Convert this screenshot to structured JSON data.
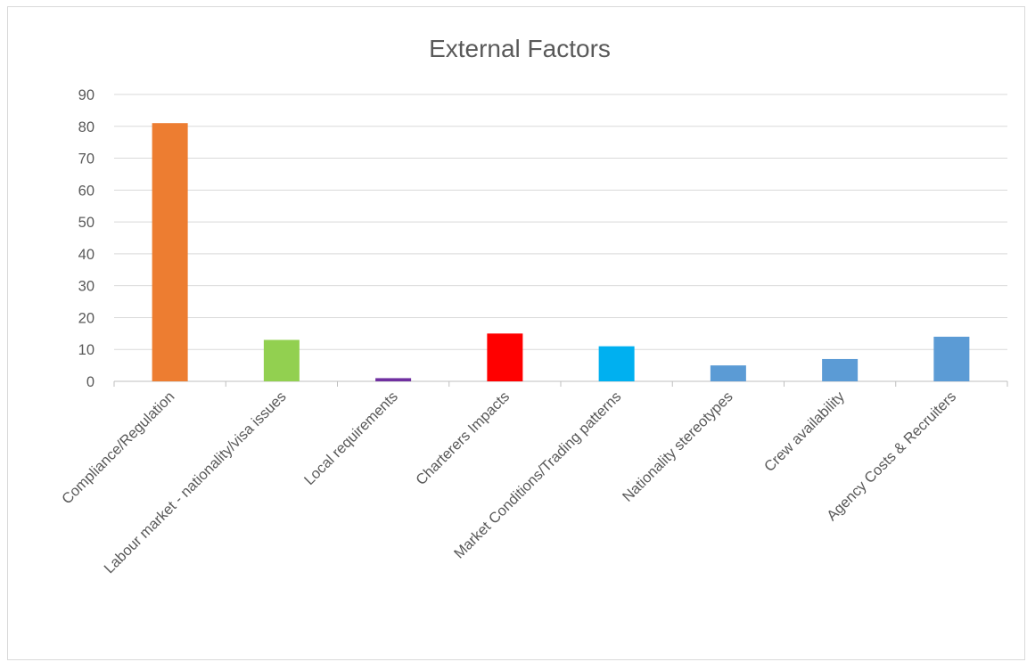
{
  "chart_data": {
    "type": "bar",
    "title": "External Factors",
    "xlabel": "",
    "ylabel": "",
    "ylim": [
      0,
      90
    ],
    "yticks": [
      0,
      10,
      20,
      30,
      40,
      50,
      60,
      70,
      80,
      90
    ],
    "grid": true,
    "legend": "none",
    "categories": [
      "Compliance/Regulation",
      "Labour market - nationality/visa issues",
      "Local requirements",
      "Charterers Impacts",
      "Market Conditions/Trading patterns",
      "Nationality stereotypes",
      "Crew availability",
      "Agency Costs & Recruiters"
    ],
    "values": [
      81,
      13,
      1,
      15,
      11,
      5,
      7,
      14
    ],
    "colors": [
      "#ED7D31",
      "#92D050",
      "#7030A0",
      "#FF0000",
      "#00B0F0",
      "#5B9BD5",
      "#5B9BD5",
      "#5B9BD5"
    ]
  }
}
